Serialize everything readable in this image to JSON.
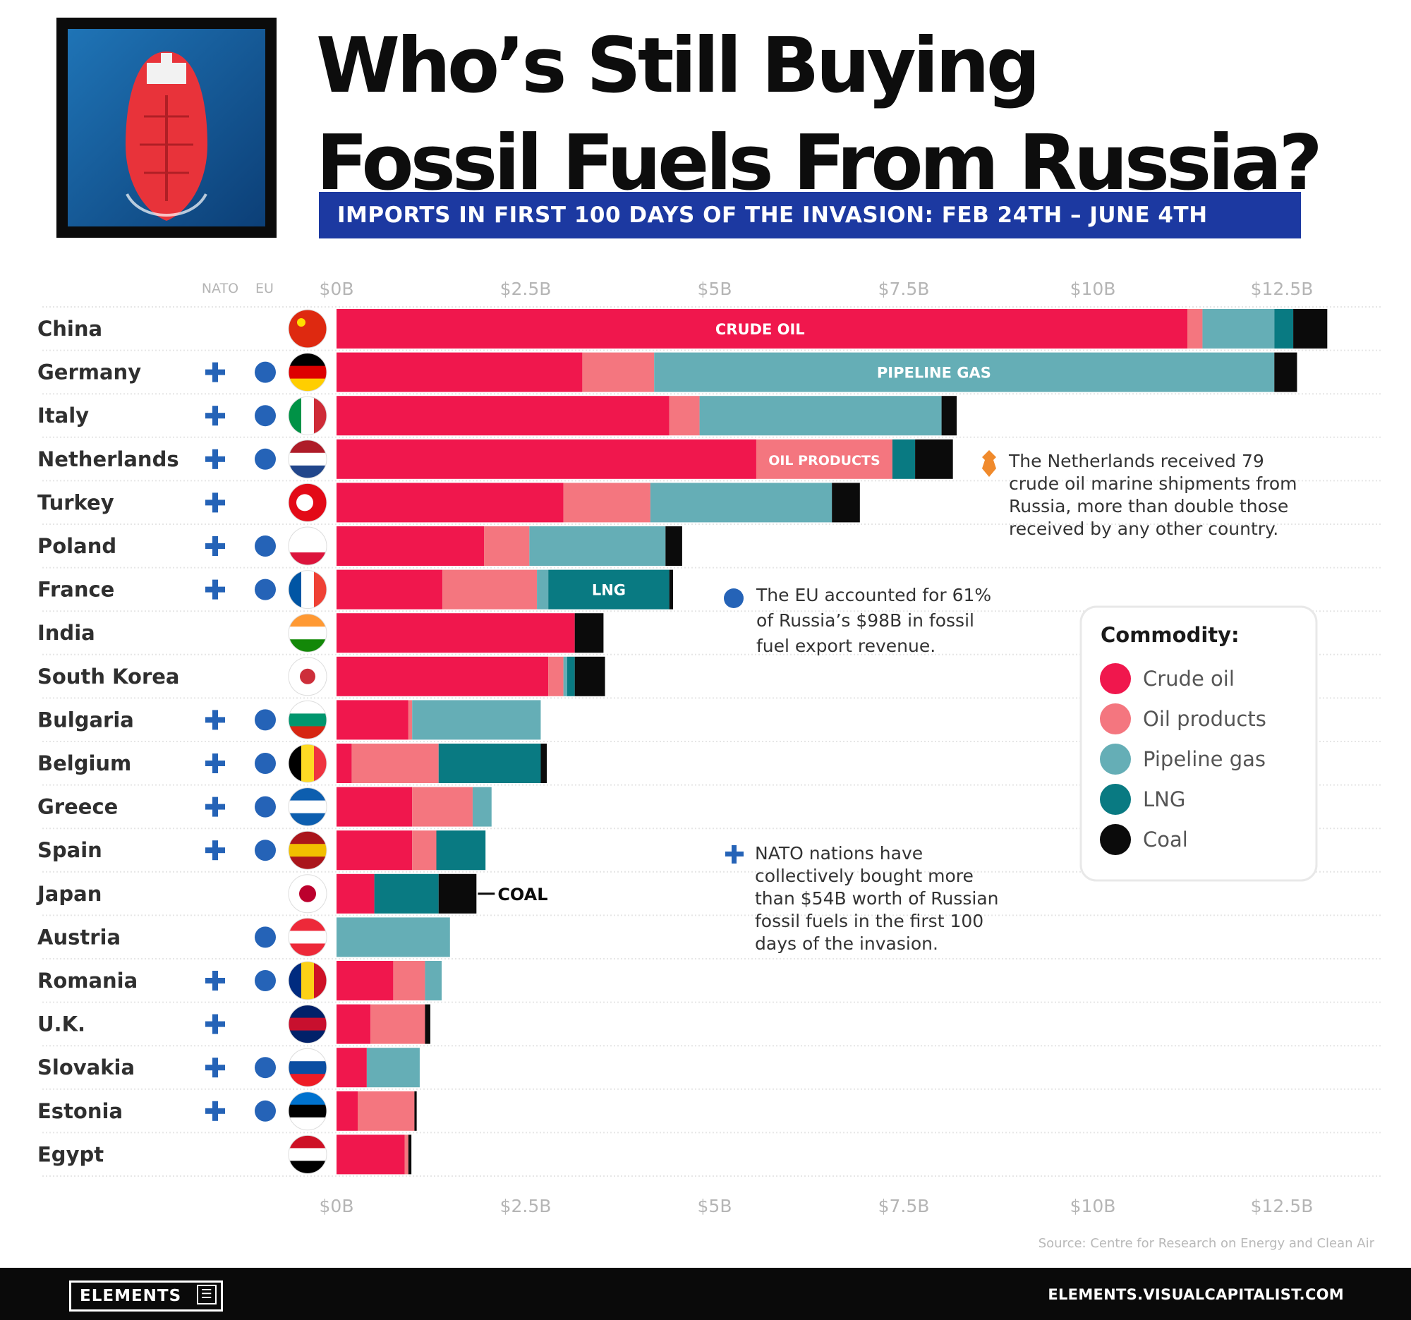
{
  "header": {
    "title_line1": "Who’s Still Buying",
    "title_line2": "Fossil Fuels From Russia?",
    "subtitle": "IMPORTS IN FIRST 100 DAYS OF THE INVASION:  FEB 24TH – JUNE 4TH"
  },
  "columns": {
    "nato": "NATO",
    "eu": "EU"
  },
  "source": "Source: Centre for Research on Energy and Clean Air",
  "footer": {
    "logo": "ELEMENTS",
    "url": "ELEMENTS.VISUALCAPITALIST.COM"
  },
  "colors": {
    "crude_oil": "#f0174d",
    "oil_products": "#f4767f",
    "pipeline_gas": "#65aeb6",
    "lng": "#097a82",
    "coal": "#0b0b0b",
    "nato_eu_markers": "#2563b7",
    "subtitle_band": "#1c39a1",
    "netherlands_note_icon": "#f08a2c"
  },
  "bar_labels": {
    "crude_oil": "CRUDE OIL",
    "pipeline_gas": "PIPELINE GAS",
    "oil_products": "OIL PRODUCTS",
    "lng": "LNG",
    "coal": "COAL"
  },
  "annotations": {
    "netherlands": [
      "The Netherlands received 79",
      "crude oil marine shipments from",
      "Russia, more than double those",
      "received by any other country."
    ],
    "eu": [
      "The EU accounted for 61%",
      "of Russia’s $98B in fossil",
      "fuel export revenue."
    ],
    "nato": [
      "NATO nations have",
      "collectively bought more",
      "than $54B worth of Russian",
      "fossil fuels in the first 100",
      "days of the invasion."
    ]
  },
  "legend": {
    "title": "Commodity:"
  },
  "chart_data": {
    "type": "bar",
    "orientation": "horizontal",
    "stacked": true,
    "xlim": [
      0,
      13.5
    ],
    "x_ticks": [
      "$0B",
      "$2.5B",
      "$5B",
      "$7.5B",
      "$10B",
      "$12.5B"
    ],
    "x_tick_values": [
      0,
      2.5,
      5,
      7.5,
      10,
      12.5
    ],
    "categories": [
      "China",
      "Germany",
      "Italy",
      "Netherlands",
      "Turkey",
      "Poland",
      "France",
      "India",
      "South Korea",
      "Bulgaria",
      "Belgium",
      "Greece",
      "Spain",
      "Japan",
      "Austria",
      "Romania",
      "U.K.",
      "Slovakia",
      "Estonia",
      "Egypt"
    ],
    "nato": [
      false,
      true,
      true,
      true,
      true,
      true,
      true,
      false,
      false,
      true,
      true,
      true,
      true,
      false,
      false,
      true,
      true,
      true,
      true,
      false
    ],
    "eu": [
      false,
      true,
      true,
      true,
      false,
      true,
      true,
      false,
      false,
      true,
      true,
      true,
      true,
      false,
      true,
      true,
      false,
      true,
      true,
      false
    ],
    "series": [
      {
        "name": "Crude oil",
        "values": [
          11.25,
          3.25,
          4.4,
          5.55,
          3.0,
          1.95,
          1.4,
          3.15,
          2.8,
          0.95,
          0.2,
          1.0,
          1.0,
          0.5,
          0.0,
          0.75,
          0.45,
          0.4,
          0.28,
          0.9
        ]
      },
      {
        "name": "Oil products",
        "values": [
          0.2,
          0.95,
          0.4,
          1.8,
          1.15,
          0.6,
          1.25,
          0.0,
          0.2,
          0.05,
          1.15,
          0.8,
          0.32,
          0.0,
          0.0,
          0.42,
          0.72,
          0.0,
          0.75,
          0.05
        ]
      },
      {
        "name": "Pipeline gas",
        "values": [
          0.95,
          8.2,
          3.2,
          0.0,
          2.4,
          1.8,
          0.15,
          0.0,
          0.05,
          1.7,
          0.0,
          0.25,
          0.0,
          0.0,
          1.5,
          0.22,
          0.0,
          0.7,
          0.0,
          0.0
        ]
      },
      {
        "name": "LNG",
        "values": [
          0.25,
          0.0,
          0.0,
          0.3,
          0.0,
          0.0,
          1.6,
          0.0,
          0.1,
          0.0,
          1.35,
          0.0,
          0.65,
          0.85,
          0.0,
          0.0,
          0.0,
          0.0,
          0.0,
          0.0
        ]
      },
      {
        "name": "Coal",
        "values": [
          0.45,
          0.3,
          0.2,
          0.5,
          0.37,
          0.22,
          0.05,
          0.38,
          0.4,
          0.0,
          0.08,
          0.0,
          0.0,
          0.5,
          0.0,
          0.0,
          0.07,
          0.0,
          0.03,
          0.04
        ]
      }
    ]
  }
}
